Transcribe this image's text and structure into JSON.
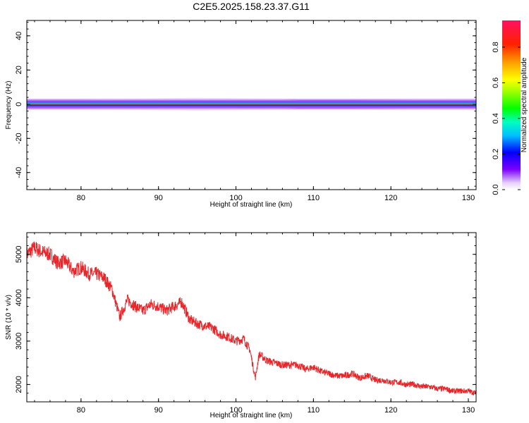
{
  "title": "C2E5.2025.158.23.37.G11",
  "colors": {
    "snr_line": "#e8262a",
    "border": "#000000",
    "background": "#ffffff"
  },
  "chart_data": [
    {
      "type": "heatmap",
      "name": "spectrogram",
      "xlabel": "Height of straight line (km)",
      "ylabel": "Frequency (Hz)",
      "xlim": [
        73,
        131
      ],
      "ylim": [
        -50,
        49
      ],
      "xticks": [
        80,
        90,
        100,
        110,
        120,
        130
      ],
      "yticks": [
        -40,
        -20,
        0,
        20,
        40
      ],
      "xtick_labels": [
        "80",
        "90",
        "100",
        "110",
        "120",
        "130"
      ],
      "ytick_labels": [
        "-40",
        "-20",
        "0",
        "20",
        "40"
      ],
      "colorbar": {
        "label": "Normalized spectral amplitude",
        "range": [
          0,
          0.95
        ],
        "ticks": [
          0.0,
          0.2,
          0.4,
          0.6,
          0.8
        ],
        "tick_labels": [
          "0.0",
          "0.2",
          "0.4",
          "0.6",
          "0.8"
        ]
      },
      "band_center_hz": 0,
      "band_halfwidth_hz": [
        [
          73,
          2.5
        ],
        [
          80,
          2.5
        ],
        [
          85,
          3.0
        ],
        [
          90,
          3.5
        ],
        [
          95,
          3.8
        ],
        [
          100,
          3.5
        ],
        [
          105,
          3.0
        ],
        [
          108,
          2.2
        ],
        [
          115,
          2.2
        ],
        [
          120,
          2.5
        ],
        [
          125,
          3.0
        ],
        [
          131,
          3.2
        ]
      ]
    },
    {
      "type": "line",
      "name": "snr",
      "xlabel": "Height of straight line (km)",
      "ylabel": "SNR (10 * v/v)",
      "xlim": [
        73,
        131
      ],
      "ylim": [
        1600,
        5500
      ],
      "xticks": [
        80,
        90,
        100,
        110,
        120,
        130
      ],
      "yticks": [
        2000,
        3000,
        4000,
        5000
      ],
      "xtick_labels": [
        "80",
        "90",
        "100",
        "110",
        "120",
        "130"
      ],
      "ytick_labels": [
        "2000",
        "3000",
        "4000",
        "5000"
      ],
      "x": [
        73,
        74,
        75,
        76,
        77,
        78,
        79,
        80,
        81,
        82,
        83,
        84,
        85,
        86,
        87,
        88,
        89,
        90,
        91,
        92,
        93,
        94,
        95,
        96,
        97,
        98,
        99,
        100,
        101,
        101.8,
        102.5,
        103,
        104,
        105,
        106,
        107,
        108,
        109,
        110,
        111,
        112,
        113,
        114,
        115,
        116,
        117,
        118,
        119,
        120,
        121,
        122,
        123,
        124,
        125,
        126,
        127,
        128,
        129,
        130,
        131
      ],
      "y": [
        5000,
        5150,
        5050,
        5000,
        4800,
        4850,
        4600,
        4700,
        4550,
        4550,
        4450,
        4200,
        3550,
        3950,
        3800,
        3700,
        3850,
        3800,
        3700,
        3800,
        3900,
        3500,
        3400,
        3350,
        3300,
        3150,
        3100,
        3000,
        3050,
        2800,
        2150,
        2700,
        2550,
        2500,
        2450,
        2450,
        2450,
        2350,
        2400,
        2300,
        2250,
        2200,
        2200,
        2250,
        2150,
        2200,
        2100,
        2100,
        2050,
        2050,
        2000,
        2000,
        1950,
        1950,
        1900,
        1900,
        1850,
        1850,
        1850,
        1800
      ]
    }
  ]
}
